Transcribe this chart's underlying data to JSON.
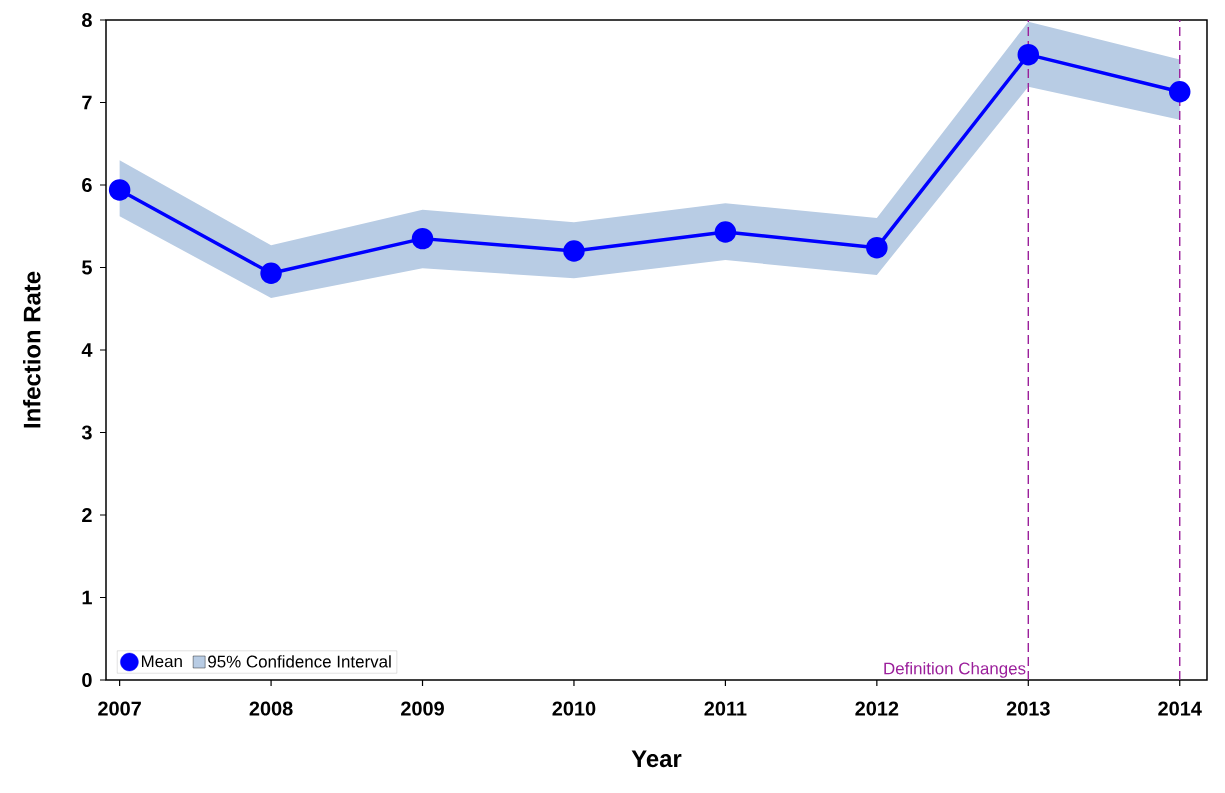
{
  "chart_data": {
    "type": "line",
    "xlabel": "Year",
    "ylabel": "Infection Rate",
    "x": [
      2007,
      2008,
      2009,
      2010,
      2011,
      2012,
      2013,
      2014
    ],
    "series": [
      {
        "name": "Mean",
        "color": "#0000ff",
        "values": [
          5.94,
          4.93,
          5.35,
          5.2,
          5.43,
          5.24,
          7.58,
          7.13
        ],
        "lower": [
          5.62,
          4.63,
          4.99,
          4.87,
          5.09,
          4.91,
          7.19,
          6.79
        ],
        "upper": [
          6.3,
          5.27,
          5.7,
          5.55,
          5.78,
          5.6,
          7.98,
          7.52
        ]
      }
    ],
    "annotations": [
      "95% Confidence Interval"
    ],
    "marker": "circle",
    "xlim": [
      2006.91,
      2014.18
    ],
    "ylim": [
      0,
      8
    ],
    "xticks": [
      2007,
      2008,
      2009,
      2010,
      2011,
      2012,
      2013,
      2014
    ],
    "yticks": [
      0,
      1,
      2,
      3,
      4,
      5,
      6,
      7,
      8
    ],
    "ref_lines": [
      {
        "axis": "x",
        "value": 2013,
        "label": "Definition Changes",
        "color": "#9b1f9b",
        "line_style": "dashed"
      },
      {
        "axis": "x",
        "value": 2014,
        "color": "#9b1f9b",
        "line_style": "dashed"
      }
    ],
    "legend": "bottom left"
  }
}
